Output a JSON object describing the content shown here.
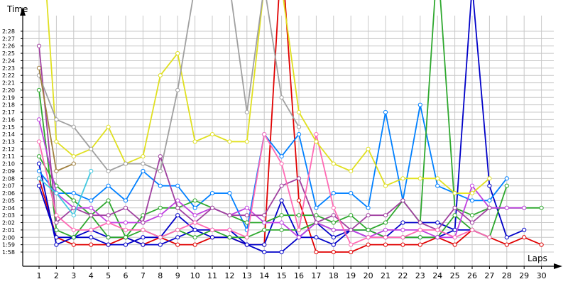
{
  "chart_data": {
    "type": "line",
    "title": "",
    "xlabel": "Laps",
    "ylabel": "Time",
    "x": [
      1,
      2,
      3,
      4,
      5,
      6,
      7,
      8,
      9,
      10,
      11,
      12,
      13,
      14,
      15,
      16,
      17,
      18,
      19,
      20,
      21,
      22,
      23,
      24,
      25,
      26,
      27,
      28,
      29,
      30
    ],
    "x_ticks": [
      "1",
      "2",
      "3",
      "4",
      "5",
      "6",
      "7",
      "8",
      "9",
      "10",
      "11",
      "12",
      "13",
      "14",
      "15",
      "16",
      "17",
      "18",
      "19",
      "20",
      "21",
      "22",
      "23",
      "24",
      "25",
      "26",
      "27",
      "28",
      "29",
      "30"
    ],
    "y_ticks": [
      "1:58",
      "1:59",
      "2:00",
      "2:01",
      "2:02",
      "2:03",
      "2:04",
      "2:05",
      "2:06",
      "2:07",
      "2:08",
      "2:09",
      "2:10",
      "2:11",
      "2:12",
      "2:13",
      "2:14",
      "2:15",
      "2:16",
      "2:17",
      "2:18",
      "2:19",
      "2:20",
      "2:21",
      "2:22",
      "2:23",
      "2:24",
      "2:25",
      "2:26",
      "2:27",
      "2:28"
    ],
    "ylim_seconds": [
      115,
      170
    ],
    "xlim": [
      0,
      30
    ],
    "grid": true,
    "legend": "none",
    "series": [
      {
        "color": "#e00000",
        "values": [
          128,
          120,
          119,
          119,
          119,
          120,
          119,
          120,
          119,
          119,
          120,
          120,
          119,
          119,
          159,
          125,
          118,
          118,
          118,
          119,
          119,
          119,
          119,
          120,
          119,
          121,
          120,
          119,
          120,
          119
        ]
      },
      {
        "color": "#0000c8",
        "values": [
          130,
          119,
          120,
          121,
          120,
          120,
          119,
          119,
          120,
          121,
          120,
          120,
          119,
          118,
          118,
          120,
          120,
          119,
          121,
          121,
          120,
          120,
          120,
          120,
          121,
          170,
          127,
          120,
          121,
          null
        ]
      },
      {
        "color": "#0000c8",
        "values": [
          127,
          120,
          120,
          120,
          119,
          119,
          120,
          120,
          123,
          121,
          121,
          121,
          119,
          119,
          125,
          120,
          122,
          120,
          121,
          120,
          120,
          122,
          122,
          122,
          121,
          121,
          120,
          null,
          null,
          null
        ]
      },
      {
        "color": "#0080ff",
        "values": [
          129,
          126,
          126,
          125,
          127,
          125,
          129,
          127,
          127,
          124,
          126,
          126,
          121,
          134,
          131,
          134,
          124,
          126,
          126,
          124,
          137,
          125,
          138,
          127,
          126,
          125,
          125,
          128,
          null,
          null
        ]
      },
      {
        "color": "#2ea82e",
        "values": [
          131,
          127,
          125,
          123,
          125,
          120,
          123,
          124,
          124,
          125,
          124,
          123,
          122,
          122,
          123,
          123,
          123,
          122,
          123,
          121,
          122,
          125,
          122,
          158,
          124,
          123,
          124,
          124,
          124,
          124
        ]
      },
      {
        "color": "#2ea82e",
        "values": [
          140,
          121,
          120,
          123,
          120,
          120,
          121,
          120,
          121,
          120,
          121,
          120,
          120,
          121,
          121,
          121,
          122,
          121,
          121,
          121,
          120,
          120,
          120,
          120,
          123,
          121,
          120,
          127,
          null,
          null
        ]
      },
      {
        "color": "#c040e0",
        "values": [
          136,
          126,
          124,
          124,
          122,
          122,
          122,
          123,
          125,
          123,
          124,
          123,
          124,
          122,
          122,
          120,
          122,
          121,
          121,
          120,
          121,
          121,
          121,
          120,
          120,
          127,
          124,
          124,
          124,
          null
        ]
      },
      {
        "color": "#a040a0",
        "values": [
          146,
          122,
          124,
          123,
          123,
          124,
          122,
          131,
          124,
          122,
          124,
          123,
          123,
          123,
          127,
          128,
          122,
          123,
          121,
          123,
          123,
          125,
          122,
          121,
          124,
          122,
          124,
          null,
          null,
          null
        ]
      },
      {
        "color": "#ff69b4",
        "values": [
          133,
          123,
          121,
          121,
          122,
          121,
          121,
          120,
          121,
          122,
          121,
          121,
          120,
          134,
          130,
          121,
          134,
          124,
          119,
          120,
          120,
          120,
          121,
          121,
          120,
          121,
          120,
          null,
          null,
          null
        ]
      },
      {
        "color": "#40c8e0",
        "values": [
          128,
          126,
          123,
          129,
          null,
          null,
          null,
          null,
          null,
          null,
          null,
          null,
          null,
          null,
          null,
          null,
          null,
          null,
          null,
          null,
          null,
          null,
          null,
          null,
          null,
          null,
          null,
          null,
          null,
          null
        ]
      },
      {
        "color": "#e0e020",
        "values": [
          168,
          133,
          131,
          132,
          135,
          130,
          131,
          142,
          145,
          133,
          134,
          133,
          133,
          170,
          170,
          137,
          133,
          130,
          129,
          132,
          127,
          128,
          128,
          128,
          126,
          126,
          128,
          null,
          null,
          null
        ]
      },
      {
        "color": "#a0a0a0",
        "values": [
          142,
          136,
          135,
          132,
          129,
          130,
          130,
          129,
          140,
          170,
          170,
          170,
          137,
          170,
          139,
          135,
          null,
          null,
          null,
          null,
          null,
          null,
          null,
          null,
          null,
          null,
          null,
          null,
          null,
          null
        ]
      },
      {
        "color": "#a08040",
        "values": [
          143,
          129,
          130,
          null,
          null,
          null,
          null,
          null,
          null,
          null,
          null,
          null,
          null,
          null,
          null,
          null,
          null,
          null,
          null,
          null,
          null,
          null,
          null,
          null,
          null,
          null,
          null,
          null,
          null,
          null
        ]
      }
    ]
  }
}
